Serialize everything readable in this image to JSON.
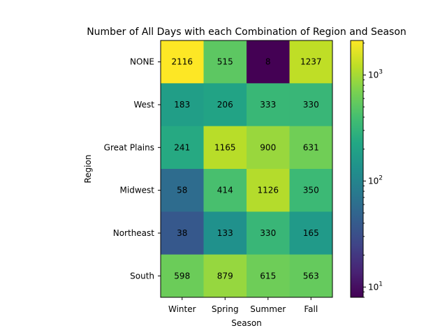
{
  "chart_data": {
    "type": "heatmap",
    "title": "Number of All Days with each Combination of Region and Season",
    "xlabel": "Season",
    "ylabel": "Region",
    "x_categories": [
      "Winter",
      "Spring",
      "Summer",
      "Fall"
    ],
    "y_categories": [
      "NONE",
      "West",
      "Great Plains",
      "Midwest",
      "Northeast",
      "South"
    ],
    "values": [
      [
        2116,
        515,
        8,
        1237
      ],
      [
        183,
        206,
        333,
        330
      ],
      [
        241,
        1165,
        900,
        631
      ],
      [
        58,
        414,
        1126,
        350
      ],
      [
        38,
        133,
        330,
        165
      ],
      [
        598,
        879,
        615,
        563
      ]
    ],
    "colormap": "viridis",
    "color_scale": "log",
    "color_range": [
      8,
      2116
    ],
    "colorbar_ticks": [
      {
        "value": 10,
        "base": "10",
        "exp": "1"
      },
      {
        "value": 100,
        "base": "10",
        "exp": "2"
      },
      {
        "value": 1000,
        "base": "10",
        "exp": "3"
      }
    ],
    "grid": false
  }
}
